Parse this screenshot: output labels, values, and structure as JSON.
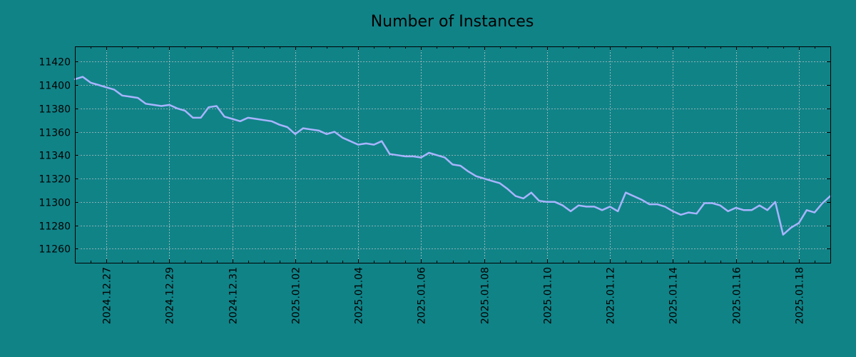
{
  "chart_data": {
    "type": "line",
    "title": "Number of Instances",
    "xlabel": "",
    "ylabel": "",
    "grid": true,
    "line_color": "#a8b4ff",
    "background_color": "#108387",
    "x_range": [
      "2024-12-26",
      "2025-01-19"
    ],
    "ylim": [
      11248,
      11433
    ],
    "y_ticks": [
      11260,
      11280,
      11300,
      11320,
      11340,
      11360,
      11380,
      11400,
      11420
    ],
    "x_tick_labels": [
      "2024.12.27",
      "2024.12.29",
      "2024.12.31",
      "2025.01.02",
      "2025.01.04",
      "2025.01.06",
      "2025.01.08",
      "2025.01.10",
      "2025.01.12",
      "2025.01.14",
      "2025.01.16",
      "2025.01.18"
    ],
    "x_tick_dates": [
      "2024-12-27",
      "2024-12-29",
      "2024-12-31",
      "2025-01-02",
      "2025-01-04",
      "2025-01-06",
      "2025-01-08",
      "2025-01-10",
      "2025-01-12",
      "2025-01-14",
      "2025-01-16",
      "2025-01-18"
    ],
    "series": [
      {
        "x": [
          "2024-12-26 00:00",
          "2024-12-26 06:00",
          "2024-12-26 12:00",
          "2024-12-26 18:00",
          "2024-12-27 00:00",
          "2024-12-27 06:00",
          "2024-12-27 12:00",
          "2024-12-27 18:00",
          "2024-12-28 00:00",
          "2024-12-28 06:00",
          "2024-12-28 12:00",
          "2024-12-28 18:00",
          "2024-12-29 00:00",
          "2024-12-29 06:00",
          "2024-12-29 12:00",
          "2024-12-29 18:00",
          "2024-12-30 00:00",
          "2024-12-30 06:00",
          "2024-12-30 12:00",
          "2024-12-30 18:00",
          "2024-12-31 00:00",
          "2024-12-31 06:00",
          "2024-12-31 12:00",
          "2024-12-31 18:00",
          "2025-01-01 00:00",
          "2025-01-01 06:00",
          "2025-01-01 12:00",
          "2025-01-01 18:00",
          "2025-01-02 00:00",
          "2025-01-02 06:00",
          "2025-01-02 12:00",
          "2025-01-02 18:00",
          "2025-01-03 00:00",
          "2025-01-03 06:00",
          "2025-01-03 12:00",
          "2025-01-03 18:00",
          "2025-01-04 00:00",
          "2025-01-04 06:00",
          "2025-01-04 12:00",
          "2025-01-04 18:00",
          "2025-01-05 00:00",
          "2025-01-05 06:00",
          "2025-01-05 12:00",
          "2025-01-05 18:00",
          "2025-01-06 00:00",
          "2025-01-06 06:00",
          "2025-01-06 12:00",
          "2025-01-06 18:00",
          "2025-01-07 00:00",
          "2025-01-07 06:00",
          "2025-01-07 12:00",
          "2025-01-07 18:00",
          "2025-01-08 00:00",
          "2025-01-08 06:00",
          "2025-01-08 12:00",
          "2025-01-08 18:00",
          "2025-01-09 00:00",
          "2025-01-09 06:00",
          "2025-01-09 12:00",
          "2025-01-09 18:00",
          "2025-01-10 00:00",
          "2025-01-10 06:00",
          "2025-01-10 12:00",
          "2025-01-10 18:00",
          "2025-01-11 00:00",
          "2025-01-11 06:00",
          "2025-01-11 12:00",
          "2025-01-11 18:00",
          "2025-01-12 00:00",
          "2025-01-12 06:00",
          "2025-01-12 12:00",
          "2025-01-12 18:00",
          "2025-01-13 00:00",
          "2025-01-13 06:00",
          "2025-01-13 12:00",
          "2025-01-13 18:00",
          "2025-01-14 00:00",
          "2025-01-14 06:00",
          "2025-01-14 12:00",
          "2025-01-14 18:00",
          "2025-01-15 00:00",
          "2025-01-15 06:00",
          "2025-01-15 12:00",
          "2025-01-15 18:00",
          "2025-01-16 00:00",
          "2025-01-16 06:00",
          "2025-01-16 12:00",
          "2025-01-16 18:00",
          "2025-01-17 00:00",
          "2025-01-17 06:00",
          "2025-01-17 12:00",
          "2025-01-17 18:00",
          "2025-01-18 00:00",
          "2025-01-18 06:00",
          "2025-01-18 12:00",
          "2025-01-18 18:00",
          "2025-01-19 00:00"
        ],
        "y": [
          11405,
          11407,
          11402,
          11400,
          11398,
          11396,
          11391,
          11390,
          11389,
          11384,
          11383,
          11382,
          11383,
          11380,
          11378,
          11372,
          11372,
          11381,
          11382,
          11373,
          11371,
          11369,
          11372,
          11371,
          11370,
          11369,
          11366,
          11364,
          11358,
          11363,
          11362,
          11361,
          11358,
          11360,
          11355,
          11352,
          11349,
          11350,
          11349,
          11352,
          11341,
          11340,
          11339,
          11339,
          11338,
          11342,
          11340,
          11338,
          11332,
          11331,
          11326,
          11322,
          11320,
          11318,
          11316,
          11311,
          11305,
          11303,
          11308,
          11301,
          11300,
          11300,
          11297,
          11292,
          11297,
          11296,
          11296,
          11293,
          11296,
          11292,
          11308,
          11305,
          11302,
          11298,
          11298,
          11296,
          11292,
          11289,
          11291,
          11290,
          11299,
          11299,
          11297,
          11292,
          11295,
          11293,
          11293,
          11297,
          11293,
          11300,
          11272,
          11278,
          11282,
          11293,
          11291,
          11299,
          11305
        ]
      }
    ]
  }
}
